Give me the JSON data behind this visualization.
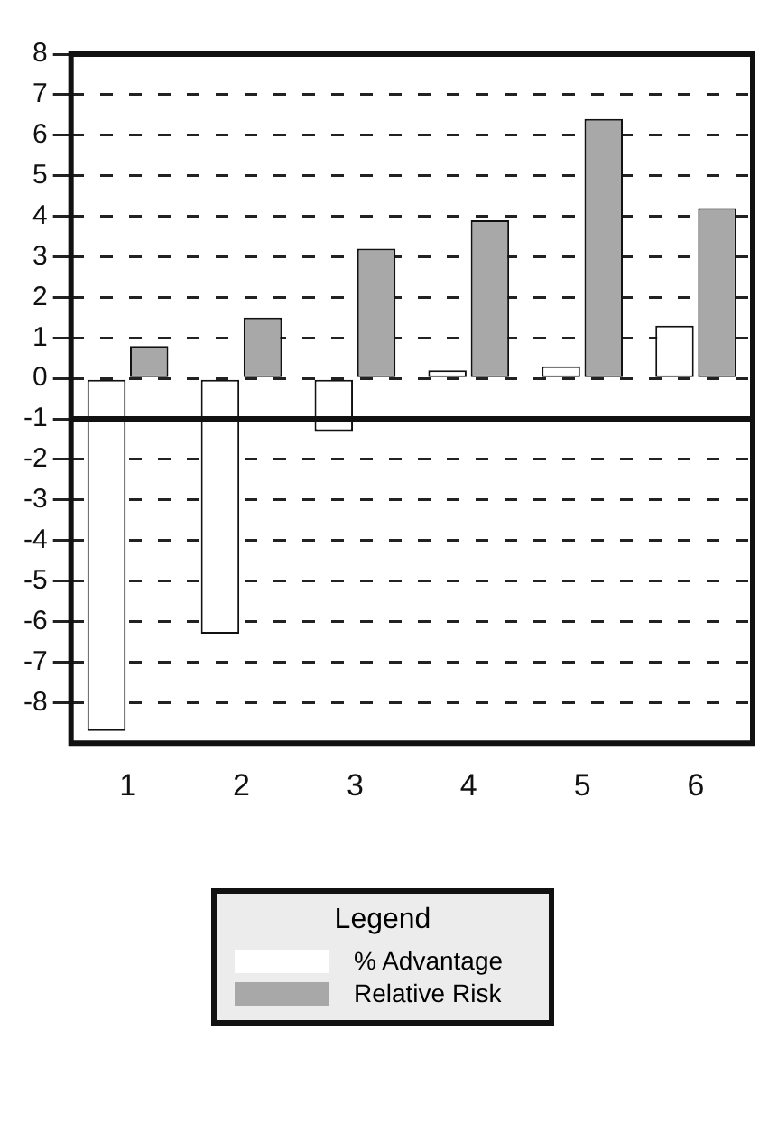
{
  "chart_data": {
    "type": "bar",
    "legend": "bottom",
    "legend_title": "Legend",
    "grid": "y",
    "categories": [
      "1",
      "2",
      "3",
      "4",
      "5",
      "6"
    ],
    "ylim": [
      -9,
      8
    ],
    "yticks": [
      8,
      7,
      6,
      5,
      4,
      3,
      2,
      1,
      0,
      -1,
      -2,
      -3,
      -4,
      -5,
      -6,
      -7,
      -8
    ],
    "ref_lines": [
      {
        "axis": "y",
        "value": -1,
        "color": "#111111"
      }
    ],
    "series": [
      {
        "name": "% Advantage",
        "color": "#ffffff",
        "values": [
          -8.7,
          -6.3,
          -1.3,
          0.2,
          0.3,
          1.3
        ]
      },
      {
        "name": "Relative Risk",
        "color": "#a8a8a8",
        "values": [
          0.8,
          1.5,
          3.2,
          3.9,
          6.4,
          4.2
        ]
      }
    ]
  }
}
